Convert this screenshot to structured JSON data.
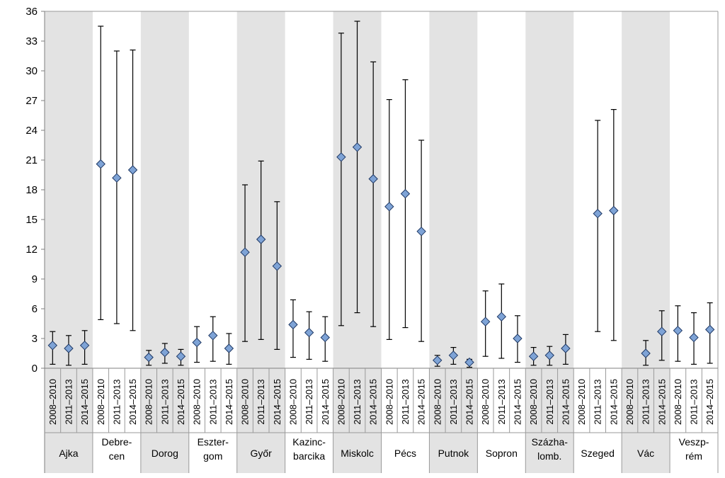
{
  "chart_data": {
    "type": "scatter",
    "title": "",
    "xlabel": "",
    "ylabel": "",
    "ylim": [
      0,
      36
    ],
    "yticks": [
      0,
      3,
      6,
      9,
      12,
      15,
      18,
      21,
      24,
      27,
      30,
      33,
      36
    ],
    "grid": false,
    "error_bars": true,
    "colors": {
      "marker_fill": "#7ea3d6",
      "marker_stroke": "#1f3864",
      "band_fill": "#e3e3e3",
      "error_bar": "#000000"
    },
    "periods": [
      "2008–2010",
      "2011–2013",
      "2014–2015"
    ],
    "groups": [
      {
        "label_lines": [
          "Ajka"
        ],
        "shaded": true,
        "points": [
          {
            "y": 2.3,
            "low": 0.4,
            "high": 3.7
          },
          {
            "y": 2.0,
            "low": 0.3,
            "high": 3.3
          },
          {
            "y": 2.3,
            "low": 0.4,
            "high": 3.8
          }
        ]
      },
      {
        "label_lines": [
          "Debre-",
          "cen"
        ],
        "shaded": false,
        "points": [
          {
            "y": 20.6,
            "low": 4.9,
            "high": 34.5
          },
          {
            "y": 19.2,
            "low": 4.5,
            "high": 32.0
          },
          {
            "y": 20.0,
            "low": 3.8,
            "high": 32.1
          }
        ]
      },
      {
        "label_lines": [
          "Dorog"
        ],
        "shaded": true,
        "points": [
          {
            "y": 1.1,
            "low": 0.3,
            "high": 1.8
          },
          {
            "y": 1.6,
            "low": 0.5,
            "high": 2.5
          },
          {
            "y": 1.2,
            "low": 0.3,
            "high": 1.9
          }
        ]
      },
      {
        "label_lines": [
          "Eszter-",
          "gom"
        ],
        "shaded": false,
        "points": [
          {
            "y": 2.6,
            "low": 0.6,
            "high": 4.2
          },
          {
            "y": 3.3,
            "low": 0.7,
            "high": 5.2
          },
          {
            "y": 2.0,
            "low": 0.4,
            "high": 3.5
          }
        ]
      },
      {
        "label_lines": [
          "Győr"
        ],
        "shaded": true,
        "points": [
          {
            "y": 11.7,
            "low": 2.7,
            "high": 18.5
          },
          {
            "y": 13.0,
            "low": 2.9,
            "high": 20.9
          },
          {
            "y": 10.3,
            "low": 1.9,
            "high": 16.8
          }
        ]
      },
      {
        "label_lines": [
          "Kazinc-",
          "barcika"
        ],
        "shaded": false,
        "points": [
          {
            "y": 4.4,
            "low": 1.1,
            "high": 6.9
          },
          {
            "y": 3.6,
            "low": 0.9,
            "high": 5.7
          },
          {
            "y": 3.1,
            "low": 0.7,
            "high": 5.2
          }
        ]
      },
      {
        "label_lines": [
          "Miskolc"
        ],
        "shaded": true,
        "points": [
          {
            "y": 21.3,
            "low": 4.3,
            "high": 33.8
          },
          {
            "y": 22.3,
            "low": 5.6,
            "high": 35.0
          },
          {
            "y": 19.1,
            "low": 4.2,
            "high": 30.9
          }
        ]
      },
      {
        "label_lines": [
          "Pécs"
        ],
        "shaded": false,
        "points": [
          {
            "y": 16.3,
            "low": 2.9,
            "high": 27.1
          },
          {
            "y": 17.6,
            "low": 4.1,
            "high": 29.1
          },
          {
            "y": 13.8,
            "low": 2.7,
            "high": 23.0
          }
        ]
      },
      {
        "label_lines": [
          "Putnok"
        ],
        "shaded": true,
        "points": [
          {
            "y": 0.8,
            "low": 0.2,
            "high": 1.3
          },
          {
            "y": 1.3,
            "low": 0.4,
            "high": 2.1
          },
          {
            "y": 0.6,
            "low": 0.1,
            "high": 0.9
          }
        ]
      },
      {
        "label_lines": [
          "Sopron"
        ],
        "shaded": false,
        "points": [
          {
            "y": 4.7,
            "low": 1.2,
            "high": 7.8
          },
          {
            "y": 5.2,
            "low": 1.0,
            "high": 8.5
          },
          {
            "y": 3.0,
            "low": 0.6,
            "high": 5.3
          }
        ]
      },
      {
        "label_lines": [
          "Százha-",
          "lomb."
        ],
        "shaded": true,
        "points": [
          {
            "y": 1.2,
            "low": 0.3,
            "high": 2.1
          },
          {
            "y": 1.3,
            "low": 0.3,
            "high": 2.2
          },
          {
            "y": 2.0,
            "low": 0.4,
            "high": 3.4
          }
        ]
      },
      {
        "label_lines": [
          "Szeged"
        ],
        "shaded": false,
        "points": [
          null,
          {
            "y": 15.6,
            "low": 3.7,
            "high": 25.0
          },
          {
            "y": 15.9,
            "low": 2.8,
            "high": 26.1
          }
        ]
      },
      {
        "label_lines": [
          "Vác"
        ],
        "shaded": true,
        "points": [
          null,
          {
            "y": 1.5,
            "low": 0.3,
            "high": 2.8
          },
          {
            "y": 3.7,
            "low": 0.8,
            "high": 5.8
          }
        ]
      },
      {
        "label_lines": [
          "Veszp-",
          "rém"
        ],
        "shaded": false,
        "points": [
          {
            "y": 3.8,
            "low": 0.7,
            "high": 6.3
          },
          {
            "y": 3.1,
            "low": 0.4,
            "high": 5.6
          },
          {
            "y": 3.9,
            "low": 0.5,
            "high": 6.6
          }
        ]
      }
    ]
  }
}
